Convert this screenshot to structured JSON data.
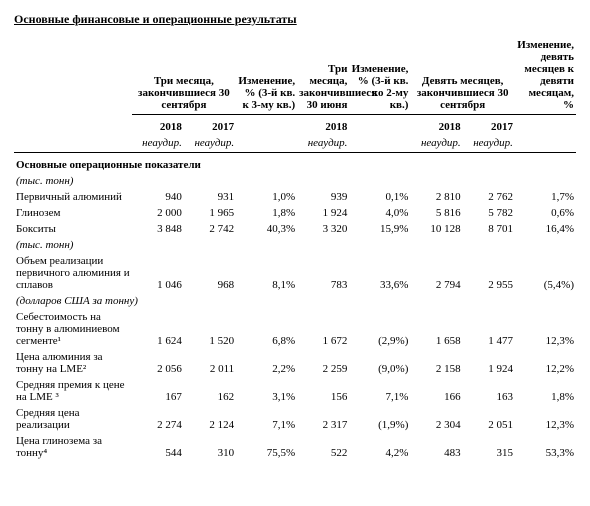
{
  "title": "Основные финансовые и операционные результаты",
  "headers": {
    "g1": "Три месяца, закончившиеся 30 сентября",
    "g2": "Изменение, % (3-й кв. к 3-му кв.)",
    "g3": "Три месяца, закончившиеся 30 июня",
    "g4": "Изменение, % (3-й кв. ко 2-му кв.)",
    "g5": "Девять месяцев, закончившиеся 30 сентября",
    "g6": "Изменение, девять месяцев к девяти месяцам, %",
    "y2018": "2018",
    "y2017": "2017",
    "unaud": "неаудир."
  },
  "section": "Основные операционные показатели",
  "unit_tonnes": "(тыс. тонн)",
  "unit_usd": "(долларов США за тонну)",
  "rows": {
    "r1": {
      "label": "Первичный алюминий",
      "a": "940",
      "b": "931",
      "c": "1,0%",
      "d": "939",
      "e": "0,1%",
      "f": "2 810",
      "g": "2 762",
      "h": "1,7%"
    },
    "r2": {
      "label": "Глинозем",
      "a": "2 000",
      "b": "1 965",
      "c": "1,8%",
      "d": "1 924",
      "e": "4,0%",
      "f": "5 816",
      "g": "5 782",
      "h": "0,6%"
    },
    "r3": {
      "label": "Бокситы",
      "a": "3 848",
      "b": "2 742",
      "c": "40,3%",
      "d": "3 320",
      "e": "15,9%",
      "f": "10 128",
      "g": "8 701",
      "h": "16,4%"
    },
    "r4": {
      "label": "Объем реализации первичного алюминия и сплавов",
      "a": "1 046",
      "b": "968",
      "c": "8,1%",
      "d": "783",
      "e": "33,6%",
      "f": "2 794",
      "g": "2 955",
      "h": "(5,4%)"
    },
    "r5": {
      "label": "Себестоимость на тонну в алюминиевом сегменте¹",
      "a": "1 624",
      "b": "1 520",
      "c": "6,8%",
      "d": "1 672",
      "e": "(2,9%)",
      "f": "1 658",
      "g": "1 477",
      "h": "12,3%"
    },
    "r6": {
      "label": "Цена алюминия за тонну на LME²",
      "a": "2 056",
      "b": "2 011",
      "c": "2,2%",
      "d": "2 259",
      "e": "(9,0%)",
      "f": "2 158",
      "g": "1 924",
      "h": "12,2%"
    },
    "r7": {
      "label": "Средняя премия к цене на LME ³",
      "a": "167",
      "b": "162",
      "c": "3,1%",
      "d": "156",
      "e": "7,1%",
      "f": "166",
      "g": "163",
      "h": "1,8%"
    },
    "r8": {
      "label": "Средняя цена реализации",
      "a": "2 274",
      "b": "2 124",
      "c": "7,1%",
      "d": "2 317",
      "e": "(1,9%)",
      "f": "2 304",
      "g": "2 051",
      "h": "12,3%"
    },
    "r9": {
      "label": "Цена глинозема за тонну⁴",
      "a": "544",
      "b": "310",
      "c": "75,5%",
      "d": "522",
      "e": "4,2%",
      "f": "483",
      "g": "315",
      "h": "53,3%"
    }
  }
}
